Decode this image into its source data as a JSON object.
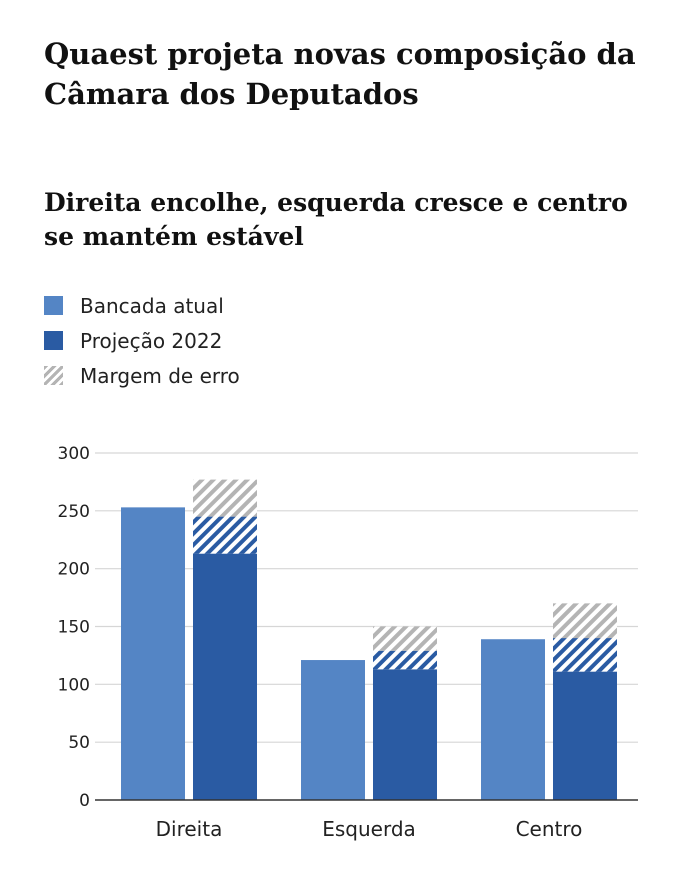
{
  "header": {
    "title": "Quaest projeta novas composição da Câmara dos Deputados",
    "subtitle": "Direita encolhe, esquerda cresce e centro se mantém estável"
  },
  "legend": {
    "items": [
      {
        "label": "Bancada atual"
      },
      {
        "label": "Projeção 2022"
      },
      {
        "label": "Margem de erro"
      }
    ]
  },
  "colors": {
    "current": "#5485c5",
    "projection": "#2a5ba3",
    "margin_stripe": "#b4b4b4",
    "grid": "#d6d6d6",
    "axis": "#333333"
  },
  "chart_data": {
    "type": "bar",
    "title": "Direita encolhe, esquerda cresce e centro se mantém estável",
    "xlabel": "",
    "ylabel": "",
    "ylim": [
      0,
      300
    ],
    "yticks": [
      0,
      50,
      100,
      150,
      200,
      250,
      300
    ],
    "grid": true,
    "categories": [
      "Direita",
      "Esquerda",
      "Centro"
    ],
    "series": [
      {
        "name": "Bancada atual",
        "values": [
          253,
          121,
          139
        ]
      },
      {
        "name": "Projeção 2022",
        "values": [
          213,
          113,
          111
        ]
      }
    ],
    "error_margin": {
      "name": "Margem de erro",
      "low": [
        213,
        113,
        111
      ],
      "high": [
        277,
        150,
        170
      ]
    },
    "error_band_dark": [
      245,
      129,
      140
    ]
  }
}
